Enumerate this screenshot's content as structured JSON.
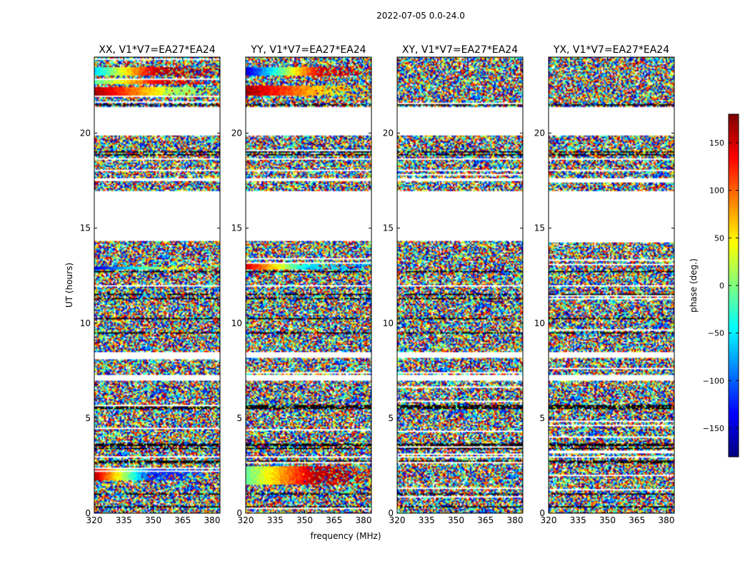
{
  "figure": {
    "suptitle": "2022-07-05 0.0-24.0",
    "colormap": "jet"
  },
  "chart_data": [
    {
      "type": "heatmap",
      "title": "XX, V1*V7=EA27*EA24",
      "xlabel": "",
      "ylabel": "UT (hours)",
      "xticks": [
        "320",
        "335",
        "350",
        "365",
        "380"
      ],
      "yticks": [
        "0",
        "5",
        "10",
        "15",
        "20"
      ],
      "xlim": [
        320,
        384
      ],
      "ylim": [
        0,
        24
      ],
      "gradient_rows": [
        {
          "ut": [
            22.6,
            22.9
          ],
          "phase_start": -20,
          "phase_end": 150,
          "mid": 0.55
        },
        {
          "ut": [
            23.0,
            23.5
          ],
          "phase_start": -60,
          "phase_end": 160,
          "mid": 0.5
        },
        {
          "ut": [
            21.9,
            22.4
          ],
          "phase_start": 170,
          "phase_end": 10,
          "mid": 0.65
        },
        {
          "ut": [
            1.7,
            2.4
          ],
          "phase_start": 160,
          "phase_end": -120,
          "mid": 0.45
        },
        {
          "ut": [
            12.8,
            13.0
          ],
          "phase_start": -150,
          "phase_end": 40,
          "mid": 0.6
        }
      ]
    },
    {
      "type": "heatmap",
      "title": "YY, V1*V7=EA27*EA24",
      "xlabel": "frequency (MHz)",
      "ylabel": "",
      "xticks": [
        "320",
        "335",
        "350",
        "365",
        "380"
      ],
      "yticks": [
        "0",
        "5",
        "10",
        "15",
        "20"
      ],
      "xlim": [
        320,
        384
      ],
      "ylim": [
        0,
        24
      ],
      "gradient_rows": [
        {
          "ut": [
            23.0,
            23.5
          ],
          "phase_start": -150,
          "phase_end": 150,
          "mid": 0.6
        },
        {
          "ut": [
            22.0,
            22.5
          ],
          "phase_start": 170,
          "phase_end": 60,
          "mid": 0.6
        },
        {
          "ut": [
            1.5,
            2.5
          ],
          "phase_start": -10,
          "phase_end": 160,
          "mid": 0.55
        },
        {
          "ut": [
            12.8,
            13.1
          ],
          "phase_start": 150,
          "phase_end": -60,
          "mid": 0.5
        }
      ]
    },
    {
      "type": "heatmap",
      "title": "XY, V1*V7=EA27*EA24",
      "xlabel": "",
      "ylabel": "",
      "xticks": [
        "320",
        "335",
        "350",
        "365",
        "380"
      ],
      "yticks": [
        "0",
        "5",
        "10",
        "15",
        "20"
      ],
      "xlim": [
        320,
        384
      ],
      "ylim": [
        0,
        24
      ],
      "gradient_rows": []
    },
    {
      "type": "heatmap",
      "title": "YX, V1*V7=EA27*EA24",
      "xlabel": "",
      "ylabel": "",
      "xticks": [
        "320",
        "335",
        "350",
        "365",
        "380"
      ],
      "yticks": [
        "0",
        "5",
        "10",
        "15",
        "20"
      ],
      "xlim": [
        320,
        384
      ],
      "ylim": [
        0,
        24
      ],
      "gradient_rows": []
    }
  ],
  "time_coverage": {
    "data_blocks_ut": [
      [
        0,
        2.9
      ],
      [
        3.0,
        7.0
      ],
      [
        7.3,
        8.2
      ],
      [
        8.5,
        11.9
      ],
      [
        12.0,
        14.3
      ],
      [
        16.95,
        17.5
      ],
      [
        17.6,
        18.0
      ],
      [
        18.1,
        18.6
      ],
      [
        18.7,
        19.9
      ],
      [
        21.4,
        24.0
      ]
    ],
    "dark_lines_ut": [
      0.35,
      1.0,
      2.7,
      3.4,
      3.6,
      5.55,
      5.65,
      9.5,
      10.25,
      11.3,
      11.5,
      12.7,
      18.85,
      19.0,
      21.5
    ]
  },
  "colorbar": {
    "label": "phase (deg.)",
    "range": [
      -180,
      180
    ],
    "ticks": [
      "150",
      "100",
      "50",
      "0",
      "−50",
      "−100",
      "−150"
    ],
    "tick_values": [
      150,
      100,
      50,
      0,
      -50,
      -100,
      -150
    ]
  }
}
